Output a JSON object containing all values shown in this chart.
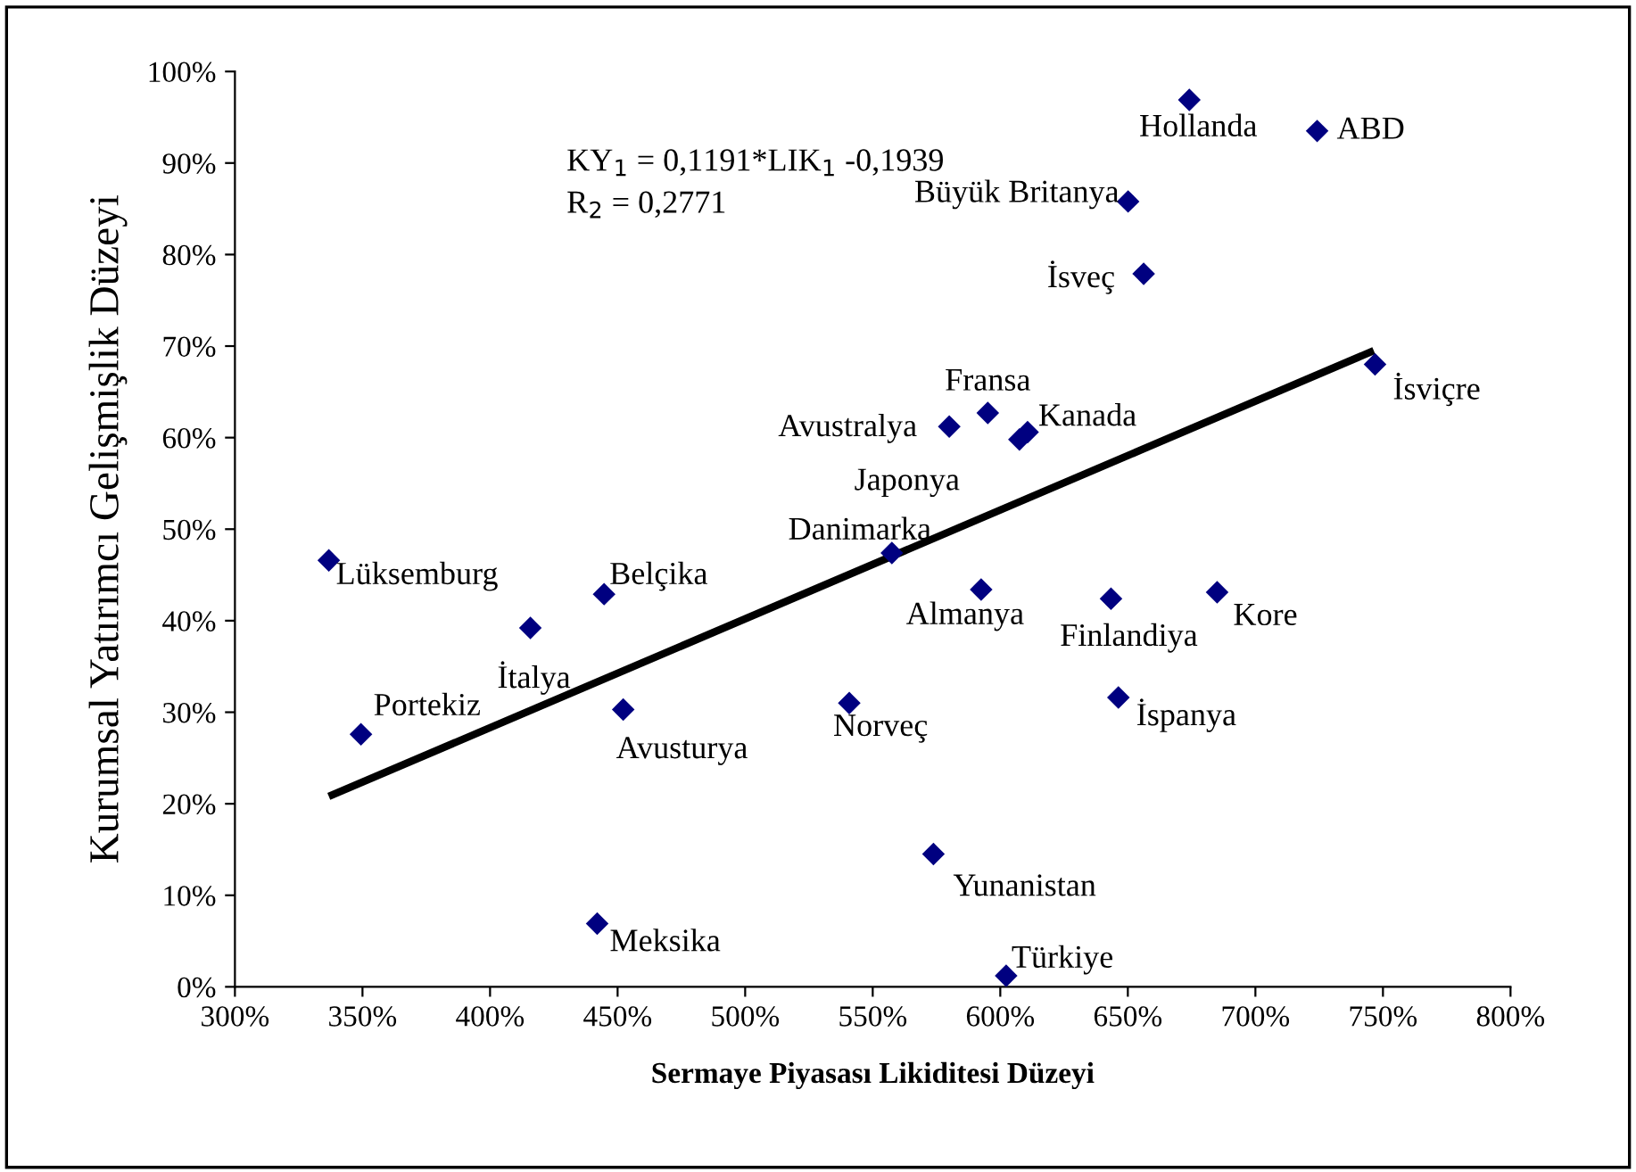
{
  "chart_data": {
    "type": "scatter",
    "xlabel": "Sermaye Piyasası Likiditesi Düzeyi",
    "ylabel": "Kurumsal Yatırımcı Gelişmişlik Düzeyi",
    "xlim": [
      300,
      800
    ],
    "ylim": [
      0,
      100
    ],
    "xticks": [
      {
        "value": 300,
        "label": "300%"
      },
      {
        "value": 350,
        "label": "350%"
      },
      {
        "value": 400,
        "label": "400%"
      },
      {
        "value": 450,
        "label": "450%"
      },
      {
        "value": 500,
        "label": "500%"
      },
      {
        "value": 550,
        "label": "550%"
      },
      {
        "value": 600,
        "label": "600%"
      },
      {
        "value": 650,
        "label": "650%"
      },
      {
        "value": 700,
        "label": "700%"
      },
      {
        "value": 750,
        "label": "750%"
      },
      {
        "value": 800,
        "label": "800%"
      }
    ],
    "yticks": [
      {
        "value": 0,
        "label": "0%"
      },
      {
        "value": 10,
        "label": "10%"
      },
      {
        "value": 20,
        "label": "20%"
      },
      {
        "value": 30,
        "label": "30%"
      },
      {
        "value": 40,
        "label": "40%"
      },
      {
        "value": 50,
        "label": "50%"
      },
      {
        "value": 60,
        "label": "60%"
      },
      {
        "value": 70,
        "label": "70%"
      },
      {
        "value": 80,
        "label": "80%"
      },
      {
        "value": 90,
        "label": "90%"
      },
      {
        "value": 100,
        "label": "100%"
      }
    ],
    "grid": false,
    "legend": false,
    "marker": "diamond",
    "series": [
      {
        "color": "#000080",
        "x": [
          336.8,
          349.4,
          415.8,
          444.7,
          452.2,
          442,
          540.8,
          557.5,
          592.5,
          643.4,
          685,
          646.3,
          573.8,
          602.3,
          674.1,
          724.2,
          650.1,
          656.2,
          746.9,
          595.1,
          580,
          610.7,
          607.5
        ],
        "values": [
          46.6,
          27.6,
          39.2,
          42.9,
          30.3,
          6.9,
          31.0,
          47.4,
          43.4,
          42.4,
          43.1,
          31.6,
          14.5,
          1.2,
          96.9,
          93.5,
          85.8,
          77.9,
          68.0,
          62.7,
          61.2,
          60.6,
          59.8
        ]
      },
      {
        "type": "line",
        "color": "#000000",
        "marker": "none",
        "line_style": "solid",
        "x": [
          336.8,
          746.4
        ],
        "values": [
          20.8,
          69.5
        ]
      }
    ],
    "annotations": [
      {
        "text": "Lüksemburg",
        "x": 336.8,
        "y": 46.6
      },
      {
        "text": "Portekiz",
        "x": 349.4,
        "y": 27.6
      },
      {
        "text": "İtalya",
        "x": 415.8,
        "y": 39.2
      },
      {
        "text": "Belçika",
        "x": 444.7,
        "y": 42.9
      },
      {
        "text": "Avusturya",
        "x": 452.2,
        "y": 30.3
      },
      {
        "text": "Meksika",
        "x": 442,
        "y": 6.9
      },
      {
        "text": "Norveç",
        "x": 540.8,
        "y": 31.0
      },
      {
        "text": "Danimarka",
        "x": 557.5,
        "y": 47.4
      },
      {
        "text": "Almanya",
        "x": 592.5,
        "y": 43.4
      },
      {
        "text": "Finlandiya",
        "x": 643.4,
        "y": 42.4
      },
      {
        "text": "Kore",
        "x": 685,
        "y": 43.1
      },
      {
        "text": "İspanya",
        "x": 646.3,
        "y": 31.6
      },
      {
        "text": "Yunanistan",
        "x": 573.8,
        "y": 14.5
      },
      {
        "text": "Türkiye",
        "x": 602.3,
        "y": 1.2
      },
      {
        "text": "Hollanda",
        "x": 674.1,
        "y": 96.9
      },
      {
        "text": "ABD",
        "x": 724.2,
        "y": 93.5
      },
      {
        "text": "Büyük Britanya",
        "x": 650.1,
        "y": 85.8
      },
      {
        "text": "İsveç",
        "x": 656.2,
        "y": 77.9
      },
      {
        "text": "İsviçre",
        "x": 746.9,
        "y": 68.0
      },
      {
        "text": "Fransa",
        "x": 595.1,
        "y": 62.7
      },
      {
        "text": "Avustralya",
        "x": 580,
        "y": 61.2
      },
      {
        "text": "Kanada",
        "x": 610.7,
        "y": 60.6
      },
      {
        "text": "Japonya",
        "x": 607.5,
        "y": 59.8
      },
      "KY$_{1}$ = 0,1191*LIK$_{1}$ -0,1939",
      "R$_{2}$ = 0,2771"
    ]
  }
}
